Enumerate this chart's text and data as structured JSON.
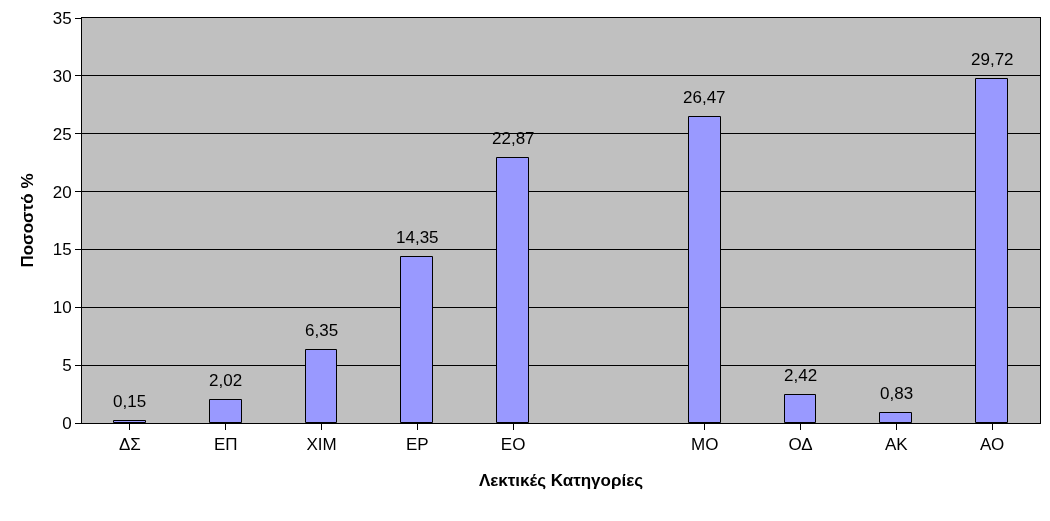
{
  "chart_data": {
    "type": "bar",
    "xlabel": "Λεκτικές Κατηγορίες",
    "ylabel": "Ποσοστό %",
    "categories": [
      "ΔΣ",
      "ΕΠ",
      "ΧΙΜ",
      "ΕΡ",
      "ΕΟ",
      null,
      "ΜΟ",
      "ΟΔ",
      "ΑΚ",
      "ΑΟ"
    ],
    "values": [
      0.15,
      2.02,
      6.35,
      14.35,
      22.87,
      null,
      26.47,
      2.42,
      0.83,
      29.72
    ],
    "value_labels": [
      "0,15",
      "2,02",
      "6,35",
      "14,35",
      "22,87",
      null,
      "26,47",
      "2,42",
      "0,83",
      "29,72"
    ],
    "color": "#9999ff",
    "ylim": [
      0,
      35
    ],
    "yticks": [
      0,
      5,
      10,
      15,
      20,
      25,
      30,
      35
    ],
    "grid": "y"
  }
}
